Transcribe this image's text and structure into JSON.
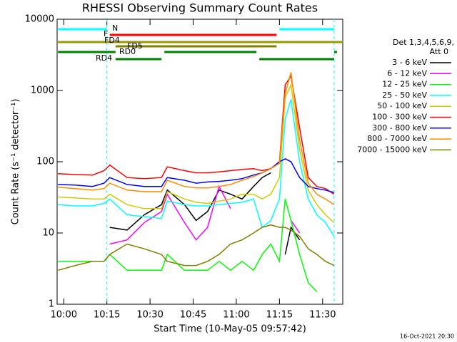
{
  "chart_data": {
    "type": "line",
    "title": "RHESSI Observing Summary Count Rates",
    "x_label": "Start Time (10-May-05 09:57:42)",
    "y_label": "Count Rate (s⁻¹ detector⁻¹)",
    "legend_title": [
      "Det 1,3,4,5,6,9,",
      "Att 0"
    ],
    "footer": "16-Oct-2021 20:30",
    "log_y": true,
    "ylim": [
      1,
      10000
    ],
    "yticks": [
      1,
      10,
      100,
      1000,
      10000
    ],
    "xlim": [
      "09:57:42",
      "11:37"
    ],
    "xticks": [
      "10:00",
      "10:15",
      "10:30",
      "10:45",
      "11:00",
      "11:15",
      "11:30"
    ],
    "x": [
      "09:58",
      "10:04",
      "10:10",
      "10:14",
      "10:16",
      "10:22",
      "10:28",
      "10:34",
      "10:36",
      "10:42",
      "10:46",
      "10:50",
      "10:54",
      "10:58",
      "11:02",
      "11:06",
      "11:09",
      "11:12",
      "11:15",
      "11:17",
      "11:19",
      "11:22",
      "11:25",
      "11:28",
      "11:31",
      "11:34"
    ],
    "series": [
      {
        "name": "3 - 6 keV",
        "color": "#000000",
        "values": [
          null,
          null,
          null,
          null,
          12,
          11,
          18,
          25,
          40,
          25,
          15,
          20,
          40,
          35,
          30,
          45,
          60,
          70,
          null,
          5,
          12,
          8,
          null,
          null,
          null,
          null
        ]
      },
      {
        "name": "6 - 12 keV",
        "color": "#ff00ff",
        "values": [
          null,
          null,
          null,
          null,
          7,
          8,
          14,
          20,
          35,
          14,
          8,
          12,
          45,
          22,
          null,
          null,
          null,
          null,
          null,
          null,
          15,
          10,
          null,
          null,
          null,
          null
        ]
      },
      {
        "name": "12 - 25 keV",
        "color": "#00ff00",
        "values": [
          4,
          4,
          4,
          4,
          5,
          3,
          3,
          3,
          5,
          3,
          3,
          3,
          4,
          3,
          4,
          3,
          5,
          7,
          4,
          30,
          15,
          5,
          2,
          1.5,
          null,
          null
        ]
      },
      {
        "name": "25 - 50 keV",
        "color": "#00ffff",
        "values": [
          25,
          24,
          24,
          26,
          30,
          18,
          17,
          16,
          28,
          25,
          24,
          24,
          25,
          26,
          27,
          30,
          12,
          15,
          30,
          400,
          750,
          100,
          30,
          18,
          14,
          9
        ]
      },
      {
        "name": "50 - 100 keV",
        "color": "#cccc00",
        "values": [
          32,
          31,
          30,
          30,
          35,
          25,
          22,
          22,
          38,
          30,
          27,
          26,
          28,
          30,
          35,
          35,
          30,
          35,
          60,
          800,
          1200,
          150,
          40,
          25,
          18,
          14
        ]
      },
      {
        "name": "100 - 300 keV",
        "color": "#ff0000",
        "values": [
          68,
          66,
          65,
          75,
          90,
          60,
          58,
          60,
          85,
          75,
          70,
          70,
          72,
          75,
          78,
          80,
          75,
          80,
          100,
          1200,
          1600,
          300,
          60,
          45,
          42,
          35
        ]
      },
      {
        "name": "300 - 800 keV",
        "color": "#0000ff",
        "values": [
          48,
          47,
          45,
          50,
          60,
          48,
          45,
          45,
          60,
          55,
          50,
          52,
          53,
          55,
          58,
          65,
          70,
          80,
          100,
          110,
          100,
          60,
          45,
          42,
          40,
          37
        ]
      },
      {
        "name": "800 - 7000 keV",
        "color": "#ff8c00",
        "values": [
          44,
          42,
          40,
          42,
          50,
          40,
          38,
          38,
          55,
          45,
          43,
          43,
          45,
          48,
          55,
          62,
          70,
          80,
          95,
          900,
          1800,
          200,
          50,
          35,
          30,
          25
        ]
      },
      {
        "name": "7000 - 15000 keV",
        "color": "#808000",
        "values": [
          3,
          3.5,
          4,
          4,
          5,
          7,
          6,
          5,
          4,
          3.5,
          3.5,
          4,
          5,
          7,
          8,
          10,
          12,
          13,
          12,
          12,
          11,
          9,
          6,
          5,
          4,
          3.5
        ]
      }
    ],
    "flags": [
      {
        "label": "N",
        "color": "#00ffff",
        "segments": [
          [
            "09:58",
            "10:15"
          ],
          [
            "11:15",
            "11:34"
          ]
        ]
      },
      {
        "label": "F",
        "color": "#ff0000",
        "segments": [
          [
            "10:16",
            "11:14"
          ]
        ]
      },
      {
        "label": "FD4",
        "color": "#999900",
        "segments": [
          [
            "09:58",
            "11:37"
          ]
        ]
      },
      {
        "label": "FD5",
        "color": "#808000",
        "segments": [
          [
            "10:18",
            "11:14"
          ]
        ]
      },
      {
        "label": "RD0",
        "color": "#008000",
        "segments": [
          [
            "09:58",
            "10:18"
          ],
          [
            "10:35",
            "11:07"
          ],
          [
            "11:34",
            "11:35"
          ]
        ]
      },
      {
        "label": "RD4",
        "color": "#008000",
        "segments": [
          [
            "10:18",
            "10:34"
          ],
          [
            "11:08",
            "11:34"
          ]
        ]
      }
    ]
  }
}
